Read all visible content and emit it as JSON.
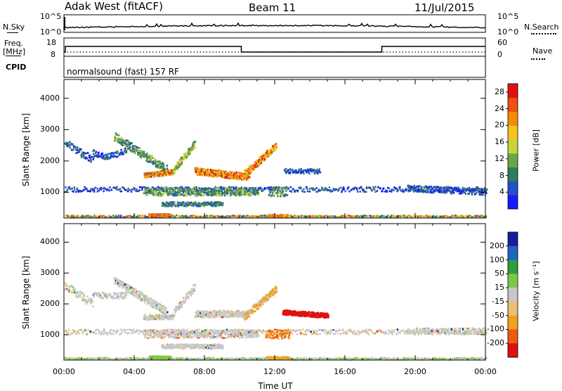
{
  "header": {
    "radar": "Adak West (fitACF)",
    "beam": "Beam 11",
    "date": "11/Jul/2015"
  },
  "noise_panel": {
    "left_label": "N.Sky",
    "left_tick_top": "10^5",
    "left_tick_bottom": "10^0",
    "right_tick_top": "10^5",
    "right_tick_bottom": "10^0",
    "right_label": "N.Search"
  },
  "freq_panel": {
    "left_label_1": "Freq.",
    "left_label_2": "[MHz]",
    "left_tick_top": "18",
    "left_tick_bottom": "8",
    "right_tick_top": "60",
    "right_tick_bottom": "0",
    "right_label": "Nave"
  },
  "cpid_panel": {
    "label": "CPID",
    "text": "normalsound (fast) 157 RF"
  },
  "colors": {
    "frame": "#000000",
    "power_scale": [
      "#1a1aff",
      "#2450c8",
      "#2e7d5a",
      "#66a845",
      "#c6d63a",
      "#f3c61c",
      "#f58a0f",
      "#ef5010",
      "#e21010"
    ],
    "velocity_scale": [
      "#e01010",
      "#ee5a10",
      "#f2a020",
      "#e8c070",
      "#c8c8c8",
      "#7cc844",
      "#2e9c44",
      "#2460c0",
      "#1a1aa0"
    ]
  },
  "chart_data": [
    {
      "type": "heatmap",
      "panel": "power",
      "xlabel": "",
      "ylabel": "Slant Range [km]",
      "xlim": [
        0,
        24
      ],
      "ylim": [
        180,
        4600
      ],
      "yticks": [
        "1000",
        "2000",
        "3000",
        "4000"
      ],
      "colorbar": {
        "label": "Power [dB]",
        "ticks": [
          "4",
          "8",
          "12",
          "16",
          "20",
          "24",
          "28"
        ],
        "range": [
          0,
          30
        ]
      }
    },
    {
      "type": "heatmap",
      "panel": "velocity",
      "xlabel": "Time UT",
      "ylabel": "Slant Range [km]",
      "xlim": [
        0,
        24
      ],
      "ylim": [
        180,
        4600
      ],
      "xticks": [
        "00:00",
        "04:00",
        "08:00",
        "12:00",
        "16:00",
        "20:00",
        "00:00"
      ],
      "yticks": [
        "1000",
        "2000",
        "3000",
        "4000"
      ],
      "colorbar": {
        "label": "Velocity [m s⁻¹]",
        "ticks": [
          "200",
          "100",
          "50",
          "15",
          "-15",
          "-50",
          "-100",
          "-200"
        ]
      }
    }
  ]
}
